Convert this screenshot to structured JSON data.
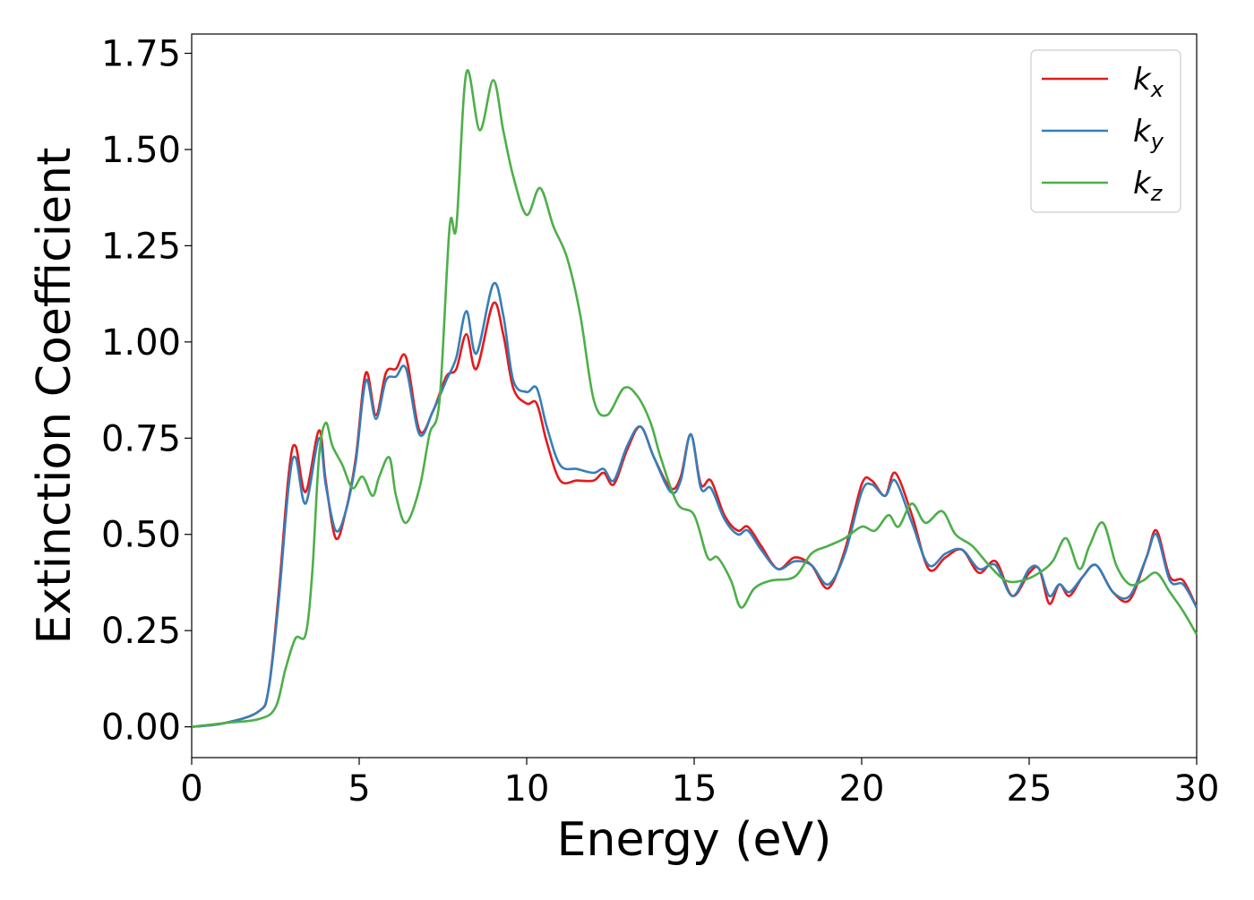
{
  "chart_data": {
    "type": "line",
    "xlabel": "Energy (eV)",
    "ylabel": "Extinction Coefficient",
    "xlim": [
      0,
      30
    ],
    "ylim": [
      -0.08,
      1.8
    ],
    "xticks": [
      0,
      5,
      10,
      15,
      20,
      25,
      30
    ],
    "xtick_labels": [
      "0",
      "5",
      "10",
      "15",
      "20",
      "25",
      "30"
    ],
    "yticks": [
      0.0,
      0.25,
      0.5,
      0.75,
      1.0,
      1.25,
      1.5,
      1.75
    ],
    "ytick_labels": [
      "0.00",
      "0.25",
      "0.50",
      "0.75",
      "1.00",
      "1.25",
      "1.50",
      "1.75"
    ],
    "grid": false,
    "legend_position": "top-right",
    "series": [
      {
        "name": "k_x",
        "label_base": "k",
        "label_sub": "x",
        "color": "#e41a1c",
        "x": [
          0,
          1,
          2,
          2.3,
          2.6,
          2.9,
          3.1,
          3.4,
          3.8,
          4.0,
          4.3,
          4.6,
          4.9,
          5.2,
          5.5,
          5.8,
          6.1,
          6.4,
          6.8,
          7.2,
          7.6,
          7.9,
          8.2,
          8.5,
          9.0,
          9.3,
          9.6,
          10.0,
          10.3,
          10.6,
          11.0,
          11.5,
          12.0,
          12.3,
          12.6,
          13.0,
          13.4,
          13.8,
          14.3,
          14.6,
          14.9,
          15.2,
          15.5,
          15.9,
          16.3,
          16.6,
          17.0,
          17.5,
          18.0,
          18.5,
          19.0,
          19.5,
          20.0,
          20.3,
          20.7,
          21.0,
          21.5,
          22.0,
          22.5,
          23.0,
          23.5,
          24.0,
          24.5,
          25.0,
          25.3,
          25.6,
          25.9,
          26.2,
          26.6,
          27.0,
          27.5,
          28.0,
          28.5,
          28.8,
          29.2,
          29.6,
          30.0
        ],
        "values": [
          0.0,
          0.01,
          0.04,
          0.1,
          0.35,
          0.66,
          0.73,
          0.61,
          0.77,
          0.64,
          0.49,
          0.56,
          0.7,
          0.92,
          0.81,
          0.92,
          0.93,
          0.96,
          0.77,
          0.82,
          0.91,
          0.93,
          1.02,
          0.93,
          1.1,
          1.02,
          0.88,
          0.84,
          0.84,
          0.74,
          0.64,
          0.64,
          0.64,
          0.66,
          0.63,
          0.72,
          0.78,
          0.7,
          0.62,
          0.65,
          0.76,
          0.63,
          0.64,
          0.55,
          0.51,
          0.52,
          0.47,
          0.41,
          0.44,
          0.42,
          0.36,
          0.46,
          0.63,
          0.64,
          0.6,
          0.66,
          0.55,
          0.41,
          0.44,
          0.46,
          0.4,
          0.43,
          0.34,
          0.4,
          0.41,
          0.32,
          0.37,
          0.34,
          0.39,
          0.42,
          0.35,
          0.33,
          0.44,
          0.51,
          0.39,
          0.38,
          0.31
        ]
      },
      {
        "name": "k_y",
        "label_base": "k",
        "label_sub": "y",
        "color": "#377eb8",
        "x": [
          0,
          1,
          2,
          2.3,
          2.6,
          2.9,
          3.1,
          3.4,
          3.8,
          4.0,
          4.3,
          4.6,
          4.9,
          5.2,
          5.5,
          5.8,
          6.1,
          6.4,
          6.8,
          7.2,
          7.6,
          7.9,
          8.2,
          8.5,
          9.0,
          9.3,
          9.6,
          10.0,
          10.3,
          10.6,
          11.0,
          11.5,
          12.0,
          12.3,
          12.6,
          13.0,
          13.4,
          13.8,
          14.3,
          14.6,
          14.9,
          15.2,
          15.5,
          15.9,
          16.3,
          16.6,
          17.0,
          17.5,
          18.0,
          18.5,
          19.0,
          19.5,
          20.0,
          20.3,
          20.7,
          21.0,
          21.5,
          22.0,
          22.5,
          23.0,
          23.5,
          24.0,
          24.5,
          25.0,
          25.3,
          25.6,
          25.9,
          26.2,
          26.6,
          27.0,
          27.5,
          28.0,
          28.5,
          28.8,
          29.2,
          29.6,
          30.0
        ],
        "values": [
          0.0,
          0.01,
          0.04,
          0.1,
          0.33,
          0.63,
          0.7,
          0.58,
          0.75,
          0.63,
          0.51,
          0.56,
          0.69,
          0.9,
          0.8,
          0.9,
          0.91,
          0.93,
          0.76,
          0.82,
          0.9,
          0.96,
          1.08,
          0.97,
          1.15,
          1.07,
          0.9,
          0.87,
          0.88,
          0.78,
          0.68,
          0.67,
          0.66,
          0.67,
          0.64,
          0.73,
          0.78,
          0.7,
          0.61,
          0.64,
          0.76,
          0.62,
          0.62,
          0.54,
          0.5,
          0.51,
          0.46,
          0.41,
          0.43,
          0.42,
          0.37,
          0.45,
          0.61,
          0.63,
          0.6,
          0.64,
          0.53,
          0.42,
          0.45,
          0.46,
          0.41,
          0.42,
          0.34,
          0.41,
          0.41,
          0.34,
          0.37,
          0.35,
          0.39,
          0.42,
          0.35,
          0.34,
          0.44,
          0.5,
          0.38,
          0.37,
          0.31
        ]
      },
      {
        "name": "k_z",
        "label_base": "k",
        "label_sub": "z",
        "color": "#4daf4a",
        "x": [
          0,
          1,
          2,
          2.5,
          2.8,
          3.1,
          3.4,
          3.6,
          3.8,
          4.0,
          4.2,
          4.5,
          4.8,
          5.1,
          5.4,
          5.6,
          5.9,
          6.1,
          6.4,
          6.8,
          7.1,
          7.4,
          7.7,
          7.9,
          8.2,
          8.6,
          9.0,
          9.3,
          9.6,
          10.0,
          10.4,
          10.8,
          11.2,
          11.6,
          12.0,
          12.4,
          12.9,
          13.3,
          13.7,
          14.0,
          14.5,
          15.0,
          15.4,
          15.7,
          16.1,
          16.4,
          16.8,
          17.3,
          18.0,
          18.5,
          19.0,
          19.5,
          20.0,
          20.4,
          20.8,
          21.1,
          21.5,
          21.9,
          22.4,
          22.8,
          23.3,
          23.8,
          24.3,
          24.8,
          25.3,
          25.7,
          26.1,
          26.5,
          26.8,
          27.2,
          27.6,
          28.0,
          28.4,
          28.8,
          29.2,
          29.6,
          30.0
        ],
        "values": [
          0.0,
          0.01,
          0.02,
          0.05,
          0.15,
          0.23,
          0.24,
          0.4,
          0.7,
          0.79,
          0.73,
          0.68,
          0.62,
          0.65,
          0.6,
          0.65,
          0.7,
          0.6,
          0.53,
          0.62,
          0.76,
          0.85,
          1.3,
          1.3,
          1.7,
          1.55,
          1.68,
          1.55,
          1.43,
          1.33,
          1.4,
          1.3,
          1.22,
          1.07,
          0.85,
          0.81,
          0.88,
          0.86,
          0.79,
          0.7,
          0.58,
          0.55,
          0.44,
          0.44,
          0.38,
          0.31,
          0.36,
          0.38,
          0.39,
          0.45,
          0.47,
          0.49,
          0.52,
          0.51,
          0.55,
          0.52,
          0.58,
          0.53,
          0.56,
          0.5,
          0.47,
          0.42,
          0.38,
          0.38,
          0.4,
          0.43,
          0.49,
          0.41,
          0.47,
          0.53,
          0.42,
          0.37,
          0.38,
          0.4,
          0.35,
          0.3,
          0.24
        ]
      }
    ]
  }
}
